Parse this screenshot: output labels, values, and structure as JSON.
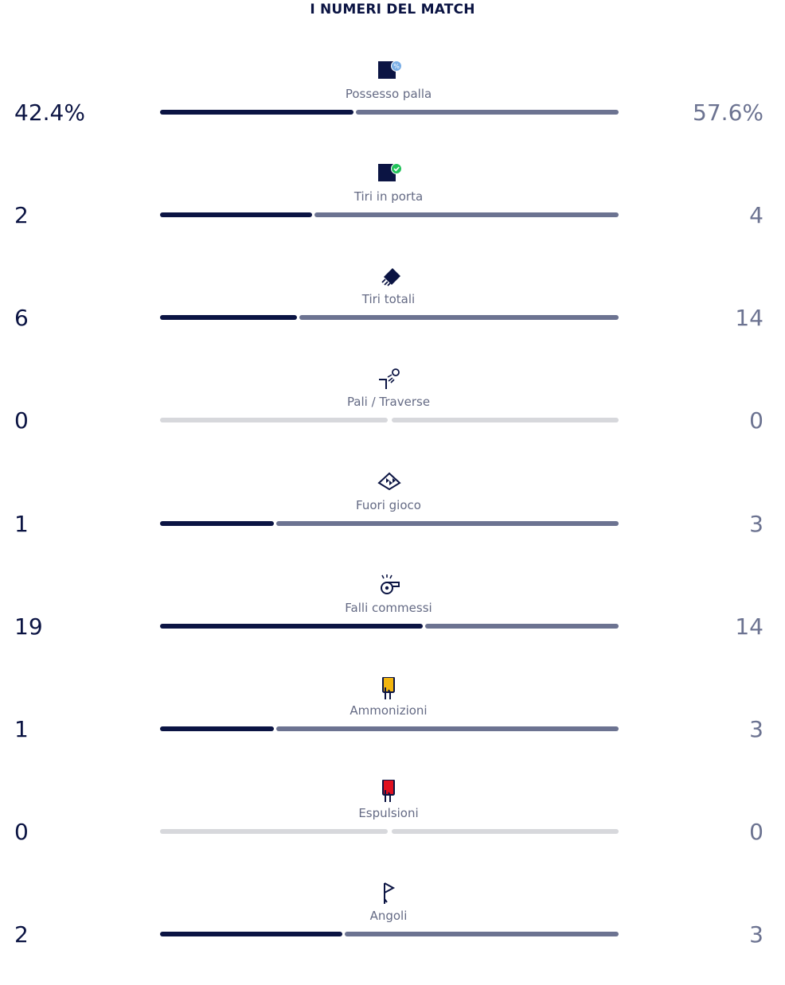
{
  "header": {
    "title": "I NUMERI DEL MATCH"
  },
  "colors": {
    "home": "#0b1443",
    "away": "#6c7391",
    "empty": "#d7d8dc",
    "label": "#646a84",
    "yellow_card": "#f2b50f",
    "red_card": "#e01020",
    "possession_badge": "#7aaee6",
    "shots_on_target_badge": "#22c25a"
  },
  "stats": [
    {
      "label": "Possesso palla",
      "icon": "possession-icon",
      "home": "42.4%",
      "away": "57.6%",
      "home_value": 42.4,
      "away_value": 57.6
    },
    {
      "label": "Tiri in porta",
      "icon": "shots-on-target-icon",
      "home": "2",
      "away": "4",
      "home_value": 2,
      "away_value": 4
    },
    {
      "label": "Tiri totali",
      "icon": "shots-icon",
      "home": "6",
      "away": "14",
      "home_value": 6,
      "away_value": 14
    },
    {
      "label": "Pali / Traverse",
      "icon": "woodwork-icon",
      "home": "0",
      "away": "0",
      "home_value": 0,
      "away_value": 0
    },
    {
      "label": "Fuori gioco",
      "icon": "offside-flag-icon",
      "home": "1",
      "away": "3",
      "home_value": 1,
      "away_value": 3
    },
    {
      "label": "Falli commessi",
      "icon": "whistle-icon",
      "home": "19",
      "away": "14",
      "home_value": 19,
      "away_value": 14
    },
    {
      "label": "Ammonizioni",
      "icon": "yellow-card-icon",
      "home": "1",
      "away": "3",
      "home_value": 1,
      "away_value": 3
    },
    {
      "label": "Espulsioni",
      "icon": "red-card-icon",
      "home": "0",
      "away": "0",
      "home_value": 0,
      "away_value": 0
    },
    {
      "label": "Angoli",
      "icon": "corner-flag-icon",
      "home": "2",
      "away": "3",
      "home_value": 2,
      "away_value": 3
    }
  ]
}
